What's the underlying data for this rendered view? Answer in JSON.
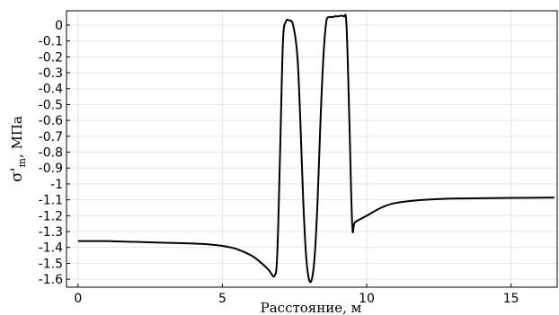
{
  "chart_data": {
    "type": "line",
    "title": "",
    "xlabel": "Расстояние, м",
    "ylabel": "σ'm, МПа",
    "ylabel_main": "σ'",
    "ylabel_sub": "m",
    "ylabel_unit": ", МПа",
    "xlim": [
      -0.4,
      16.6
    ],
    "ylim": [
      -1.65,
      0.09
    ],
    "grid": true,
    "legend": "none",
    "line_color": "#000000",
    "x_ticks": [
      {
        "value": 0,
        "label": "0"
      },
      {
        "value": 5,
        "label": "5"
      },
      {
        "value": 10,
        "label": "10"
      },
      {
        "value": 15,
        "label": "15"
      }
    ],
    "y_ticks": [
      {
        "value": 0,
        "label": "0"
      },
      {
        "value": -0.1,
        "label": "-0.1"
      },
      {
        "value": -0.2,
        "label": "-0.2"
      },
      {
        "value": -0.3,
        "label": "-0.3"
      },
      {
        "value": -0.4,
        "label": "-0.4"
      },
      {
        "value": -0.5,
        "label": "-0.5"
      },
      {
        "value": -0.6,
        "label": "-0.6"
      },
      {
        "value": -0.7,
        "label": "-0.7"
      },
      {
        "value": -0.8,
        "label": "-0.8"
      },
      {
        "value": -0.9,
        "label": "-0.9"
      },
      {
        "value": -1,
        "label": "-1"
      },
      {
        "value": -1.1,
        "label": "-1.1"
      },
      {
        "value": -1.2,
        "label": "-1.2"
      },
      {
        "value": -1.3,
        "label": "-1.3"
      },
      {
        "value": -1.4,
        "label": "-1.4"
      },
      {
        "value": -1.5,
        "label": "-1.5"
      },
      {
        "value": -1.6,
        "label": "-1.6"
      }
    ],
    "series": [
      {
        "x": [
          0,
          1,
          2,
          3,
          4,
          4.5,
          5,
          5.5,
          6,
          6.3,
          6.6,
          6.8,
          6.9,
          7.0,
          7.1,
          7.2,
          7.3,
          7.45,
          7.6,
          7.7,
          7.8,
          7.9,
          8.0,
          8.1,
          8.2,
          8.3,
          8.4,
          8.5,
          8.6,
          8.7,
          8.8,
          8.9,
          9.0,
          9.2,
          9.3,
          9.4,
          9.5,
          9.6,
          10,
          10.5,
          11,
          12,
          13,
          14,
          15,
          16.5
        ],
        "y": [
          -1.36,
          -1.36,
          -1.365,
          -1.37,
          -1.375,
          -1.38,
          -1.39,
          -1.41,
          -1.45,
          -1.49,
          -1.54,
          -1.58,
          -1.45,
          -0.8,
          -0.1,
          0.02,
          0.03,
          0.0,
          -0.2,
          -0.6,
          -1.1,
          -1.45,
          -1.6,
          -1.6,
          -1.45,
          -1.1,
          -0.6,
          -0.2,
          0.02,
          0.05,
          0.05,
          0.055,
          0.055,
          0.055,
          0.0,
          -0.6,
          -1.26,
          -1.24,
          -1.2,
          -1.15,
          -1.12,
          -1.1,
          -1.092,
          -1.09,
          -1.088,
          -1.086
        ]
      }
    ]
  }
}
